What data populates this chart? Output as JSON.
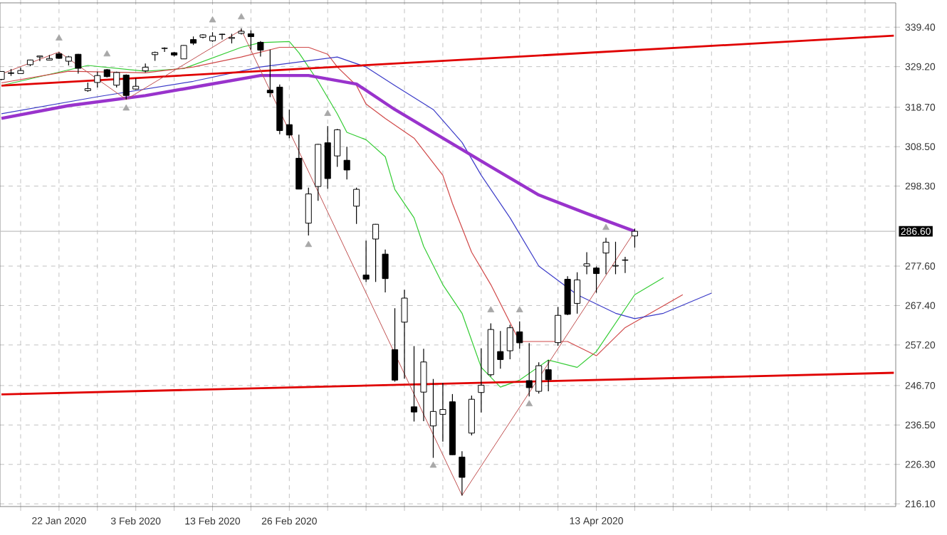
{
  "chart_data": {
    "type": "candlestick",
    "color": "#000000",
    "categories": [
      null,
      null,
      null,
      null,
      null,
      null,
      "22 Jan 2020",
      null,
      null,
      null,
      null,
      null,
      null,
      null,
      "3 Feb 2020",
      null,
      null,
      null,
      null,
      null,
      null,
      null,
      "13 Feb 2020",
      null,
      null,
      null,
      null,
      null,
      null,
      null,
      "26 Feb 2020",
      null,
      null,
      null,
      null,
      null,
      null,
      null,
      null,
      null,
      null,
      null,
      null,
      null,
      null,
      null,
      null,
      null,
      null,
      null,
      null,
      null,
      null,
      null,
      null,
      null,
      null,
      null,
      null,
      null,
      null,
      null,
      "13 Apr 2020",
      null,
      null,
      null,
      null,
      null,
      null,
      null,
      null,
      null,
      null,
      null,
      null,
      null,
      null,
      null,
      null,
      null,
      null,
      null,
      null,
      null,
      null,
      null,
      null,
      null,
      null,
      null,
      null,
      null,
      null,
      null
    ],
    "ohlc": [
      [
        325.9,
        327.95,
        325.7,
        327.95
      ],
      [
        327.6,
        328.6,
        326.8,
        327.45
      ],
      [
        327.4,
        329.0,
        327.3,
        328.19
      ],
      [
        329.7,
        331.0,
        329.3,
        330.92
      ],
      [
        331.7,
        332.0,
        330.6,
        331.95
      ],
      [
        330.9,
        332.2,
        330.8,
        331.3
      ],
      [
        332.5,
        332.95,
        331.2,
        331.34
      ],
      [
        330.6,
        332.0,
        329.5,
        331.72
      ],
      [
        332.4,
        332.5,
        327.4,
        328.77
      ],
      [
        323.0,
        325.1,
        322.7,
        323.5
      ],
      [
        325.1,
        327.9,
        323.8,
        326.89
      ],
      [
        328.4,
        328.6,
        326.4,
        326.62
      ],
      [
        324.4,
        327.9,
        323.8,
        327.68
      ],
      [
        327.0,
        327.2,
        320.7,
        321.73
      ],
      [
        323.4,
        326.2,
        323.2,
        324.12
      ],
      [
        328.1,
        330.0,
        327.7,
        329.06
      ],
      [
        332.3,
        333.1,
        330.7,
        332.86
      ],
      [
        333.9,
        334.2,
        333.0,
        333.98
      ],
      [
        332.8,
        333.0,
        331.8,
        332.2
      ],
      [
        331.2,
        334.75,
        331.2,
        334.68
      ],
      [
        336.2,
        337.0,
        334.8,
        335.26
      ],
      [
        336.8,
        337.6,
        336.5,
        337.42
      ],
      [
        335.9,
        338.1,
        335.6,
        337.06
      ],
      [
        337.5,
        337.7,
        336.2,
        337.6
      ],
      [
        336.5,
        337.7,
        335.2,
        336.73
      ],
      [
        337.8,
        339.1,
        337.5,
        338.34
      ],
      [
        337.7,
        338.6,
        333.6,
        336.95
      ],
      [
        335.5,
        335.8,
        331.8,
        333.48
      ],
      [
        323.1,
        333.6,
        321.3,
        322.42
      ],
      [
        323.9,
        324.6,
        311.7,
        312.65
      ],
      [
        314.2,
        318.1,
        310.7,
        311.5
      ],
      [
        305.5,
        311.6,
        297.5,
        297.51
      ],
      [
        288.7,
        297.9,
        285.5,
        296.26
      ],
      [
        298.2,
        309.2,
        294.5,
        309.09
      ],
      [
        309.5,
        313.8,
        297.6,
        300.24
      ],
      [
        306.1,
        313.1,
        303.3,
        312.86
      ],
      [
        304.98,
        308.5,
        300.0,
        302.46
      ],
      [
        293.1,
        297.9,
        288.5,
        297.46
      ],
      [
        275.3,
        284.2,
        273.5,
        274.23
      ],
      [
        284.6,
        288.5,
        273.5,
        288.42
      ],
      [
        280.7,
        281.9,
        270.8,
        274.36
      ],
      [
        256.0,
        266.7,
        247.7,
        248.11
      ],
      [
        263.1,
        271.5,
        248.5,
        269.32
      ],
      [
        241.2,
        256.9,
        237.4,
        239.85
      ],
      [
        245.0,
        256.2,
        237.5,
        252.8
      ],
      [
        236.25,
        248.4,
        228.0,
        240.0
      ],
      [
        239.25,
        247.4,
        232.2,
        240.51
      ],
      [
        242.5,
        244.5,
        228.76,
        228.8
      ],
      [
        228.2,
        229.7,
        218.26,
        222.95
      ],
      [
        234.4,
        244.1,
        233.8,
        243.15
      ],
      [
        244.9,
        256.35,
        239.75,
        246.79
      ],
      [
        249.5,
        262.8,
        249.05,
        261.2
      ],
      [
        255.5,
        260.8,
        251.05,
        253.42
      ],
      [
        255.7,
        262.4,
        253.5,
        261.65
      ],
      [
        260.6,
        263.3,
        256.2,
        257.75
      ],
      [
        247.98,
        257.7,
        243.9,
        246.15
      ],
      [
        245.2,
        252.7,
        244.6,
        251.83
      ],
      [
        250.8,
        253.3,
        245.2,
        248.19
      ],
      [
        257.8,
        267.0,
        257.0,
        264.86
      ],
      [
        274.2,
        275.0,
        264.9,
        265.13
      ],
      [
        267.96,
        276.0,
        265.3,
        274.03
      ],
      [
        277.6,
        281.2,
        275.5,
        278.2
      ],
      [
        277.1,
        277.5,
        270.7,
        275.66
      ],
      [
        280.98,
        284.9,
        275.5,
        283.79
      ],
      [
        277.6,
        283.9,
        275.5,
        277.76
      ],
      [
        279.2,
        280.0,
        275.8,
        279.1
      ],
      [
        285.4,
        287.3,
        282.4,
        286.6
      ],
      null,
      null,
      null,
      null,
      null,
      null,
      null,
      null,
      null,
      null,
      null,
      null,
      null,
      null,
      null,
      null,
      null,
      null,
      null,
      null,
      null,
      null,
      null,
      null,
      null,
      null,
      null
    ],
    "series": [
      {
        "type": "line",
        "color": "#33cc33",
        "values": [
          324.3,
          null,
          null,
          null,
          null,
          null,
          null,
          null,
          null,
          329.5,
          null,
          null,
          null,
          null,
          null,
          328,
          null,
          null,
          null,
          328.7,
          null,
          null,
          null,
          null,
          null,
          334.2,
          null,
          335.4,
          null,
          null,
          335.7,
          332.8,
          null,
          325.4,
          null,
          317,
          312.2,
          null,
          310.3,
          null,
          305.9,
          297.4,
          null,
          290.1,
          282.7,
          null,
          272.8,
          null,
          265.4,
          null,
          251.4,
          null,
          246.3,
          null,
          248.1,
          null,
          null,
          253.3,
          null,
          null,
          251.4,
          null,
          255.5,
          null,
          null,
          null,
          270.2,
          null,
          null,
          274.6,
          null,
          null,
          null,
          null,
          null,
          null,
          null,
          null,
          null,
          null,
          null,
          null,
          null,
          null,
          null,
          null,
          null,
          null,
          null,
          null,
          null,
          null,
          null,
          null
        ]
      },
      {
        "type": "line",
        "color": "#d04848",
        "values": [
          325,
          null,
          null,
          null,
          null,
          null,
          null,
          328,
          null,
          null,
          null,
          null,
          null,
          null,
          null,
          327.6,
          null,
          null,
          null,
          null,
          329.1,
          null,
          null,
          null,
          null,
          331.7,
          null,
          null,
          null,
          334.2,
          null,
          null,
          334.2,
          null,
          332.4,
          329.1,
          null,
          324.3,
          319.5,
          null,
          315.8,
          null,
          null,
          310.7,
          null,
          null,
          301.1,
          293.8,
          null,
          281.2,
          null,
          272.8,
          null,
          null,
          258.1,
          null,
          null,
          null,
          null,
          258.1,
          null,
          null,
          254.4,
          null,
          null,
          261.7,
          null,
          null,
          null,
          null,
          null,
          270.2,
          null,
          null,
          null,
          null,
          null,
          null,
          null,
          null,
          null,
          null,
          null,
          null,
          null,
          null,
          null,
          null,
          null,
          null,
          null,
          null,
          null,
          null
        ]
      },
      {
        "type": "line",
        "color": "#3a3ac8",
        "values": [
          317,
          null,
          null,
          null,
          null,
          null,
          null,
          null,
          null,
          null,
          321.4,
          null,
          null,
          null,
          null,
          null,
          null,
          null,
          null,
          null,
          325.4,
          null,
          null,
          null,
          null,
          null,
          null,
          329.1,
          null,
          null,
          null,
          null,
          null,
          null,
          null,
          331.7,
          null,
          null,
          329.1,
          null,
          null,
          324.3,
          null,
          null,
          null,
          318.1,
          null,
          null,
          309.6,
          null,
          301.1,
          null,
          null,
          290.1,
          null,
          null,
          277.6,
          null,
          null,
          null,
          270.2,
          null,
          null,
          null,
          265.4,
          null,
          264,
          null,
          null,
          265.4,
          null,
          null,
          null,
          null,
          270.6,
          null,
          null,
          null,
          null,
          null,
          null,
          null,
          null,
          null,
          null,
          null,
          null,
          null,
          null,
          null,
          null,
          null,
          null,
          null
        ]
      },
      {
        "type": "line",
        "color": "#9933cc",
        "values": [
          315.8,
          null,
          null,
          null,
          null,
          null,
          null,
          319.1,
          null,
          null,
          null,
          null,
          null,
          null,
          null,
          321.7,
          null,
          null,
          null,
          null,
          null,
          324.3,
          null,
          null,
          null,
          null,
          null,
          326.9,
          null,
          null,
          null,
          null,
          326.9,
          null,
          null,
          null,
          null,
          324.7,
          null,
          null,
          null,
          318.1,
          null,
          null,
          null,
          null,
          310.7,
          null,
          null,
          null,
          null,
          303.3,
          null,
          null,
          null,
          null,
          296,
          null,
          null,
          null,
          null,
          291.2,
          null,
          null,
          null,
          null,
          286.6,
          null,
          null,
          null,
          null,
          null,
          null,
          null,
          null,
          null,
          null,
          null,
          null,
          null,
          null,
          null,
          null,
          null,
          null,
          null,
          null,
          null,
          null,
          null,
          null,
          null,
          null,
          null
        ]
      },
      {
        "type": "line",
        "color": "#e00000",
        "values": [
          324.3,
          null,
          null,
          null,
          null,
          null,
          null,
          null,
          null,
          null,
          null,
          null,
          null,
          null,
          null,
          null,
          null,
          null,
          null,
          null,
          null,
          null,
          null,
          null,
          null,
          null,
          null,
          null,
          null,
          null,
          null,
          null,
          null,
          null,
          null,
          null,
          null,
          null,
          null,
          null,
          null,
          null,
          null,
          null,
          null,
          null,
          null,
          null,
          null,
          null,
          null,
          null,
          null,
          null,
          null,
          null,
          null,
          null,
          null,
          null,
          null,
          null,
          null,
          null,
          null,
          null,
          null,
          null,
          null,
          null,
          null,
          null,
          null,
          null,
          null,
          null,
          null,
          null,
          null,
          null,
          null,
          null,
          null,
          null,
          null,
          null,
          null,
          null,
          null,
          null,
          null,
          null,
          null,
          337.2
        ]
      },
      {
        "type": "line",
        "color": "#e00000",
        "values": [
          244.4,
          null,
          null,
          null,
          null,
          null,
          null,
          null,
          null,
          null,
          null,
          null,
          null,
          null,
          null,
          null,
          null,
          null,
          null,
          null,
          null,
          null,
          null,
          null,
          null,
          null,
          null,
          null,
          null,
          null,
          null,
          null,
          null,
          null,
          null,
          null,
          null,
          null,
          null,
          null,
          null,
          null,
          null,
          null,
          null,
          null,
          null,
          null,
          null,
          null,
          null,
          null,
          null,
          null,
          null,
          null,
          null,
          null,
          null,
          null,
          null,
          null,
          null,
          null,
          null,
          null,
          null,
          null,
          null,
          null,
          null,
          null,
          null,
          null,
          null,
          null,
          null,
          null,
          null,
          null,
          null,
          null,
          null,
          null,
          null,
          null,
          null,
          null,
          null,
          null,
          null,
          null,
          null,
          250.0
        ]
      },
      {
        "type": "line",
        "color": "#c05050",
        "values": [
          327.3,
          null,
          null,
          null,
          null,
          null,
          333,
          null,
          null,
          null,
          null,
          null,
          null,
          320.7,
          null,
          null,
          null,
          null,
          null,
          null,
          null,
          null,
          null,
          null,
          null,
          338.7,
          null,
          null,
          null,
          null,
          null,
          null,
          null,
          null,
          null,
          null,
          null,
          null,
          null,
          null,
          null,
          null,
          null,
          null,
          null,
          null,
          null,
          null,
          218.3,
          null,
          null,
          null,
          null,
          null,
          null,
          null,
          null,
          null,
          null,
          null,
          null,
          null,
          null,
          null,
          null,
          null,
          286.6,
          null,
          null,
          null,
          null,
          null,
          null,
          null,
          null,
          null,
          null,
          null,
          null,
          null,
          null,
          null,
          null,
          null,
          null,
          null,
          null,
          null,
          null,
          null,
          null,
          null,
          null,
          null
        ]
      },
      {
        "type": "scatter",
        "marker": "triangle",
        "color": "#a8a8a8",
        "values": [
          null,
          null,
          null,
          null,
          null,
          null,
          336.5,
          null,
          null,
          null,
          null,
          332.4,
          null,
          null,
          null,
          null,
          null,
          null,
          null,
          null,
          null,
          null,
          341.2,
          null,
          null,
          342,
          null,
          null,
          null,
          null,
          null,
          null,
          null,
          null,
          317,
          null,
          null,
          null,
          null,
          null,
          null,
          null,
          null,
          null,
          null,
          null,
          null,
          null,
          null,
          null,
          null,
          266.2,
          null,
          null,
          266.2,
          null,
          null,
          null,
          null,
          null,
          null,
          null,
          null,
          287.5,
          null,
          null,
          null,
          null,
          null,
          null,
          null,
          null,
          null,
          null,
          null,
          null,
          null,
          null,
          null,
          null,
          null,
          null,
          null,
          null,
          null,
          null,
          null,
          null,
          null,
          null,
          null,
          null,
          null,
          null
        ]
      },
      {
        "type": "scatter",
        "marker": "triangle",
        "color": "#a8a8a8",
        "values": [
          null,
          null,
          null,
          null,
          null,
          null,
          null,
          null,
          null,
          null,
          null,
          null,
          null,
          318.4,
          null,
          null,
          null,
          null,
          null,
          null,
          null,
          null,
          null,
          null,
          null,
          null,
          null,
          null,
          null,
          null,
          null,
          null,
          283.1,
          null,
          null,
          null,
          null,
          null,
          null,
          null,
          null,
          null,
          null,
          null,
          null,
          226,
          null,
          null,
          null,
          null,
          null,
          null,
          null,
          null,
          null,
          241.9,
          null,
          null,
          null,
          null,
          null,
          null,
          null,
          null,
          null,
          null,
          null,
          null,
          null,
          null,
          null,
          null,
          null,
          null,
          null,
          null,
          null,
          null,
          null,
          null,
          null,
          null,
          null,
          null,
          null,
          null,
          null,
          null,
          null,
          null,
          null,
          null,
          null,
          null
        ]
      }
    ],
    "ylim": [
      215.4,
      345.7
    ],
    "yticks": [
      {
        "value": 216.1,
        "label": "216.10"
      },
      {
        "value": 226.3,
        "label": "226.30"
      },
      {
        "value": 236.5,
        "label": "236.50"
      },
      {
        "value": 246.7,
        "label": "246.70"
      },
      {
        "value": 257.2,
        "label": "257.20"
      },
      {
        "value": 267.4,
        "label": "267.40"
      },
      {
        "value": 277.6,
        "label": "277.60"
      },
      {
        "value": 298.3,
        "label": "298.30"
      },
      {
        "value": 308.5,
        "label": "308.50"
      },
      {
        "value": 318.7,
        "label": "318.70"
      },
      {
        "value": 329.2,
        "label": "329.20"
      },
      {
        "value": 339.4,
        "label": "339.40"
      }
    ],
    "ref_lines": [
      {
        "axis": "y",
        "value": 286.6,
        "label": "286.60",
        "color": "#c0c0c0"
      }
    ],
    "grid": true
  }
}
